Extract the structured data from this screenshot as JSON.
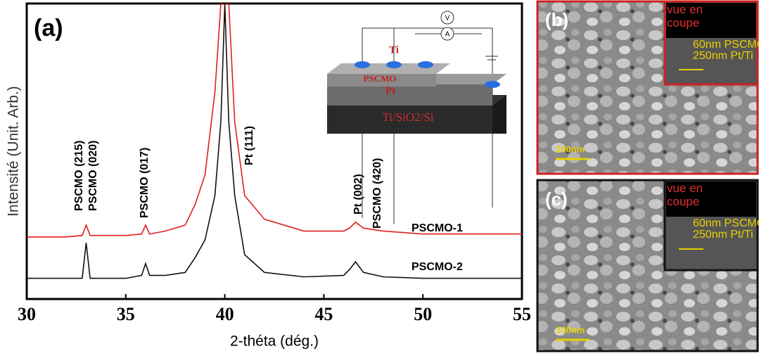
{
  "chart_data": {
    "type": "line",
    "panel_label": "(a)",
    "x_label": "2-théta (dég.)",
    "y_label": "Intensité (Unit. Arb.)",
    "x": [
      30,
      31,
      32,
      32.8,
      33,
      33.2,
      34,
      35,
      35.8,
      36,
      36.2,
      37,
      38,
      38.5,
      39,
      39.5,
      39.8,
      40,
      40.2,
      40.5,
      41,
      42,
      44,
      46,
      46.3,
      46.6,
      47,
      48,
      50,
      52,
      55
    ],
    "series": [
      {
        "name": "PSCMO-1",
        "color": "#e01e1e",
        "values": [
          21,
          21,
          21,
          21.5,
          25,
          21.5,
          21.5,
          21.5,
          22,
          25,
          22,
          23,
          25,
          32,
          42,
          70,
          100,
          100,
          100,
          60,
          35,
          27,
          23,
          23,
          24,
          26,
          24,
          23,
          22,
          22,
          22
        ]
      },
      {
        "name": "PSCMO-2",
        "color": "#111111",
        "values": [
          7,
          7,
          7,
          7,
          19,
          7,
          7,
          7,
          8,
          12,
          8,
          8,
          9,
          14,
          20,
          35,
          60,
          100,
          60,
          35,
          15,
          9,
          7.5,
          8,
          10,
          12.6,
          9,
          7.5,
          7,
          7,
          7
        ]
      }
    ],
    "xlim": [
      30,
      55
    ],
    "xticks": [
      30,
      35,
      40,
      45,
      50,
      55
    ],
    "ylim": [
      0,
      100
    ],
    "annotations": [
      "PSCMO (215)",
      "PSCMO (020)",
      "PSCMO (017)",
      "Pt (111)",
      "Pt (002)",
      "PSCMO (420)"
    ],
    "inset": {
      "layers": [
        "Ti",
        "PSCMO",
        "Pt",
        "Ti/SiO2/Si"
      ],
      "meters": [
        "V",
        "A"
      ]
    },
    "panels": [
      {
        "label": "(b)",
        "inset_title": "vue en coupe",
        "thicknesses": [
          "60nm PSCMO",
          "250nm Pt/Ti"
        ],
        "scale_bar": "300nm"
      },
      {
        "label": "(c)",
        "inset_title": "vue en coupe",
        "thicknesses": [
          "60nm PSCMO",
          "250nm Pt/Ti"
        ],
        "scale_bar": "300nm"
      }
    ]
  }
}
